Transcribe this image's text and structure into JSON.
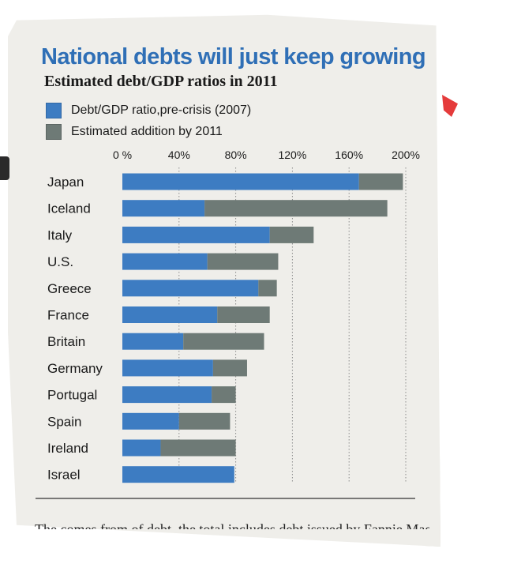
{
  "chart_data": {
    "type": "bar",
    "orientation": "horizontal",
    "stacked": true,
    "title": "National debts will just keep growing",
    "subtitle": "Estimated debt/GDP ratios in 2011",
    "xlim": [
      0,
      200
    ],
    "xticks": [
      0,
      40,
      80,
      120,
      160,
      200
    ],
    "xtick_labels": [
      "0 %",
      "40%",
      "80%",
      "120%",
      "160%",
      "200%"
    ],
    "grid": true,
    "legend_position": "top-left",
    "categories": [
      "Japan",
      "Iceland",
      "Italy",
      "U.S.",
      "Greece",
      "France",
      "Britain",
      "Germany",
      "Portugal",
      "Spain",
      "Ireland",
      "Israel"
    ],
    "series": [
      {
        "name": "Debt/GDP ratio,pre-crisis (2007)",
        "color": "#3d7cc2",
        "values": [
          167,
          58,
          104,
          60,
          96,
          67,
          43,
          64,
          63,
          40,
          27,
          79
        ]
      },
      {
        "name": "Estimated addition by 2011",
        "color": "#6e7a76",
        "values": [
          31,
          129,
          31,
          50,
          13,
          37,
          57,
          24,
          17,
          36,
          53,
          0
        ]
      }
    ]
  },
  "footer_text": "The comes from of debt, the total includes debt issued by Fannie Mae and"
}
